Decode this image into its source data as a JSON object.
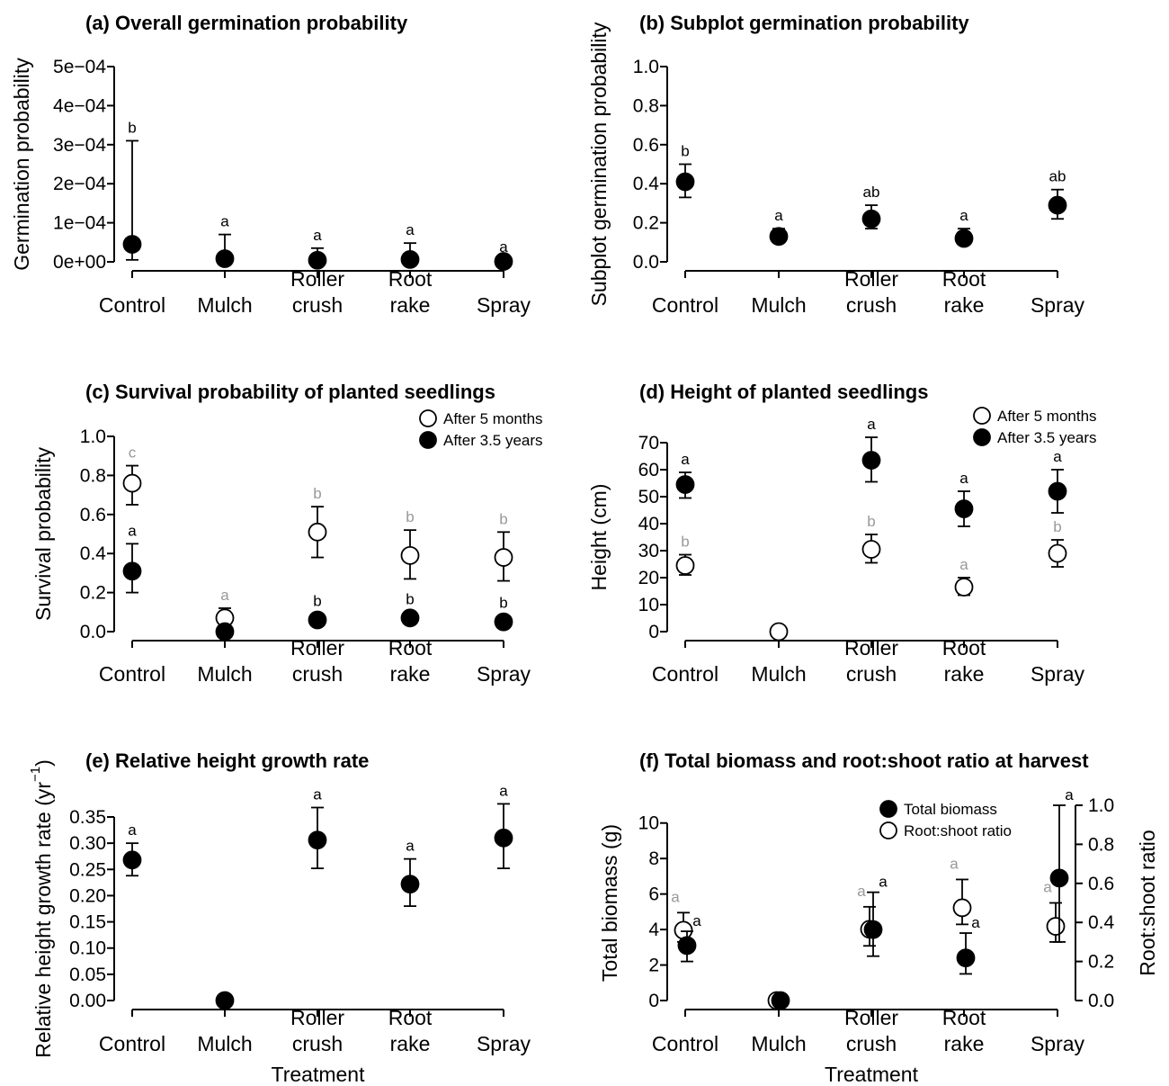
{
  "colors": {
    "ink": "#000000",
    "letter_white": "#999999",
    "letter_black": "#000000",
    "open_fill": "#ffffff",
    "closed_fill": "#000000"
  },
  "treatments": [
    "Control",
    "Mulch",
    "Roller\ncrush",
    "Root\nrake",
    "Spray"
  ],
  "chart_data": [
    {
      "id": "a",
      "type": "scatter",
      "title": "(a) Overall germination probability",
      "ylabel": "Germination probability",
      "xlabel": "",
      "ylim": [
        0,
        0.0005
      ],
      "yticks": [
        0,
        0.0001,
        0.0002,
        0.0003,
        0.0004,
        0.0005
      ],
      "ytick_labels": [
        "0e+00",
        "1e−04",
        "2e−04",
        "3e−04",
        "4e−04",
        "5e−04"
      ],
      "series": [
        {
          "style": "closed",
          "values": [
            4.5e-05,
            8e-06,
            4e-06,
            6e-06,
            1e-06
          ],
          "lower": [
            5e-06,
            1e-06,
            1e-06,
            1e-06,
            0.0
          ],
          "upper": [
            0.00031,
            7e-05,
            3.5e-05,
            4.8e-05,
            5e-06
          ],
          "letters": [
            "b",
            "a",
            "a",
            "a",
            "a"
          ]
        }
      ]
    },
    {
      "id": "b",
      "type": "scatter",
      "title": "(b) Subplot germination probability",
      "ylabel": "Subplot germination probability",
      "xlabel": "",
      "ylim": [
        0,
        1.0
      ],
      "yticks": [
        0,
        0.2,
        0.4,
        0.6,
        0.8,
        1.0
      ],
      "ytick_labels": [
        "0.0",
        "0.2",
        "0.4",
        "0.6",
        "0.8",
        "1.0"
      ],
      "series": [
        {
          "style": "closed",
          "values": [
            0.41,
            0.13,
            0.22,
            0.12,
            0.29
          ],
          "lower": [
            0.33,
            0.1,
            0.17,
            0.09,
            0.22
          ],
          "upper": [
            0.5,
            0.17,
            0.29,
            0.17,
            0.37
          ],
          "letters": [
            "b",
            "a",
            "ab",
            "a",
            "ab"
          ]
        }
      ]
    },
    {
      "id": "c",
      "type": "scatter",
      "title": "(c) Survival probability of planted seedlings",
      "ylabel": "Survival probability",
      "xlabel": "",
      "ylim": [
        0,
        1.0
      ],
      "yticks": [
        0,
        0.2,
        0.4,
        0.6,
        0.8,
        1.0
      ],
      "ytick_labels": [
        "0.0",
        "0.2",
        "0.4",
        "0.6",
        "0.8",
        "1.0"
      ],
      "legend": {
        "placement": "top-right",
        "entries": [
          {
            "style": "open",
            "label": "After 5 months"
          },
          {
            "style": "closed",
            "label": "After 3.5 years"
          }
        ]
      },
      "series": [
        {
          "style": "open",
          "values": [
            0.76,
            0.07,
            0.51,
            0.39,
            0.38
          ],
          "lower": [
            0.65,
            0.03,
            0.38,
            0.27,
            0.26
          ],
          "upper": [
            0.85,
            0.12,
            0.64,
            0.52,
            0.51
          ],
          "letters": [
            "c",
            "a",
            "b",
            "b",
            "b"
          ]
        },
        {
          "style": "closed",
          "values": [
            0.31,
            0.0,
            0.06,
            0.07,
            0.05
          ],
          "lower": [
            0.2,
            0.0,
            0.03,
            0.04,
            0.02
          ],
          "upper": [
            0.45,
            0.0,
            0.09,
            0.1,
            0.08
          ],
          "letters": [
            "a",
            "",
            "b",
            "b",
            "b"
          ]
        }
      ]
    },
    {
      "id": "d",
      "type": "scatter",
      "title": "(d) Height of planted seedlings",
      "ylabel": "Height (cm)",
      "xlabel": "",
      "ylim": [
        0,
        70
      ],
      "yticks": [
        0,
        10,
        20,
        30,
        40,
        50,
        60,
        70
      ],
      "ytick_labels": [
        "0",
        "10",
        "20",
        "30",
        "40",
        "50",
        "60",
        "70"
      ],
      "legend": {
        "placement": "top-right",
        "entries": [
          {
            "style": "open",
            "label": "After 5 months"
          },
          {
            "style": "closed",
            "label": "After 3.5 years"
          }
        ]
      },
      "series": [
        {
          "style": "open",
          "values": [
            24.5,
            0,
            30.5,
            16.5,
            29
          ],
          "lower": [
            21,
            0,
            25.5,
            13.5,
            24
          ],
          "upper": [
            28.5,
            0,
            36,
            20,
            34
          ],
          "letters": [
            "b",
            "",
            "b",
            "a",
            "b"
          ]
        },
        {
          "style": "closed",
          "values": [
            54.5,
            null,
            63.5,
            45.5,
            52
          ],
          "lower": [
            49.5,
            null,
            55.5,
            39,
            44
          ],
          "upper": [
            59,
            null,
            72,
            52,
            60
          ],
          "letters": [
            "a",
            "",
            "a",
            "a",
            "a"
          ]
        }
      ]
    },
    {
      "id": "e",
      "type": "scatter",
      "title": "(e) Relative height growth rate",
      "ylabel": "Relative height growth rate (yr",
      "ylabel_sup": "−1",
      "ylabel_end": ")",
      "xlabel": "Treatment",
      "ylim": [
        0,
        0.35
      ],
      "yticks": [
        0,
        0.05,
        0.1,
        0.15,
        0.2,
        0.25,
        0.3,
        0.35
      ],
      "ytick_labels": [
        "0.00",
        "0.05",
        "0.10",
        "0.15",
        "0.20",
        "0.25",
        "0.30",
        "0.35"
      ],
      "series": [
        {
          "style": "closed",
          "values": [
            0.268,
            0.0,
            0.306,
            0.222,
            0.31
          ],
          "lower": [
            0.238,
            0.0,
            0.252,
            0.18,
            0.252
          ],
          "upper": [
            0.3,
            0.0,
            0.368,
            0.27,
            0.375
          ],
          "letters": [
            "a",
            "",
            "a",
            "a",
            "a"
          ]
        }
      ]
    },
    {
      "id": "f",
      "type": "scatter",
      "title": "(f) Total biomass and root:shoot ratio at harvest",
      "ylabel": "Total biomass (g)",
      "ylabel_right": "Root:shoot ratio",
      "xlabel": "Treatment",
      "ylim": [
        0,
        11
      ],
      "ylim_right": [
        0,
        1.0
      ],
      "yticks": [
        0,
        2,
        4,
        6,
        8,
        10
      ],
      "ytick_labels": [
        "0",
        "2",
        "4",
        "6",
        "8",
        "10"
      ],
      "yticks_right": [
        0,
        0.2,
        0.4,
        0.6,
        0.8,
        1.0
      ],
      "ytick_labels_right": [
        "0.0",
        "0.2",
        "0.4",
        "0.6",
        "0.8",
        "1.0"
      ],
      "legend": {
        "placement": "top-right",
        "entries": [
          {
            "style": "closed",
            "label": "Total biomass"
          },
          {
            "style": "open",
            "label": "Root:shoot ratio"
          }
        ]
      },
      "series": [
        {
          "style": "open",
          "axis": "right",
          "values": [
            0.36,
            0.0,
            0.365,
            0.475,
            0.38
          ],
          "lower": [
            0.3,
            0.0,
            0.28,
            0.39,
            0.3
          ],
          "upper": [
            0.45,
            0.0,
            0.48,
            0.62,
            0.5
          ],
          "letters": [
            "a",
            "",
            "a",
            "a",
            "a"
          ]
        },
        {
          "style": "closed",
          "axis": "left",
          "values": [
            3.1,
            0.0,
            4.0,
            2.4,
            6.9
          ],
          "lower": [
            2.2,
            0.0,
            2.5,
            1.5,
            3.3
          ],
          "upper": [
            3.9,
            0.0,
            6.1,
            3.8,
            11.0
          ],
          "letters": [
            "a",
            "",
            "a",
            "a",
            "a"
          ]
        }
      ]
    }
  ]
}
